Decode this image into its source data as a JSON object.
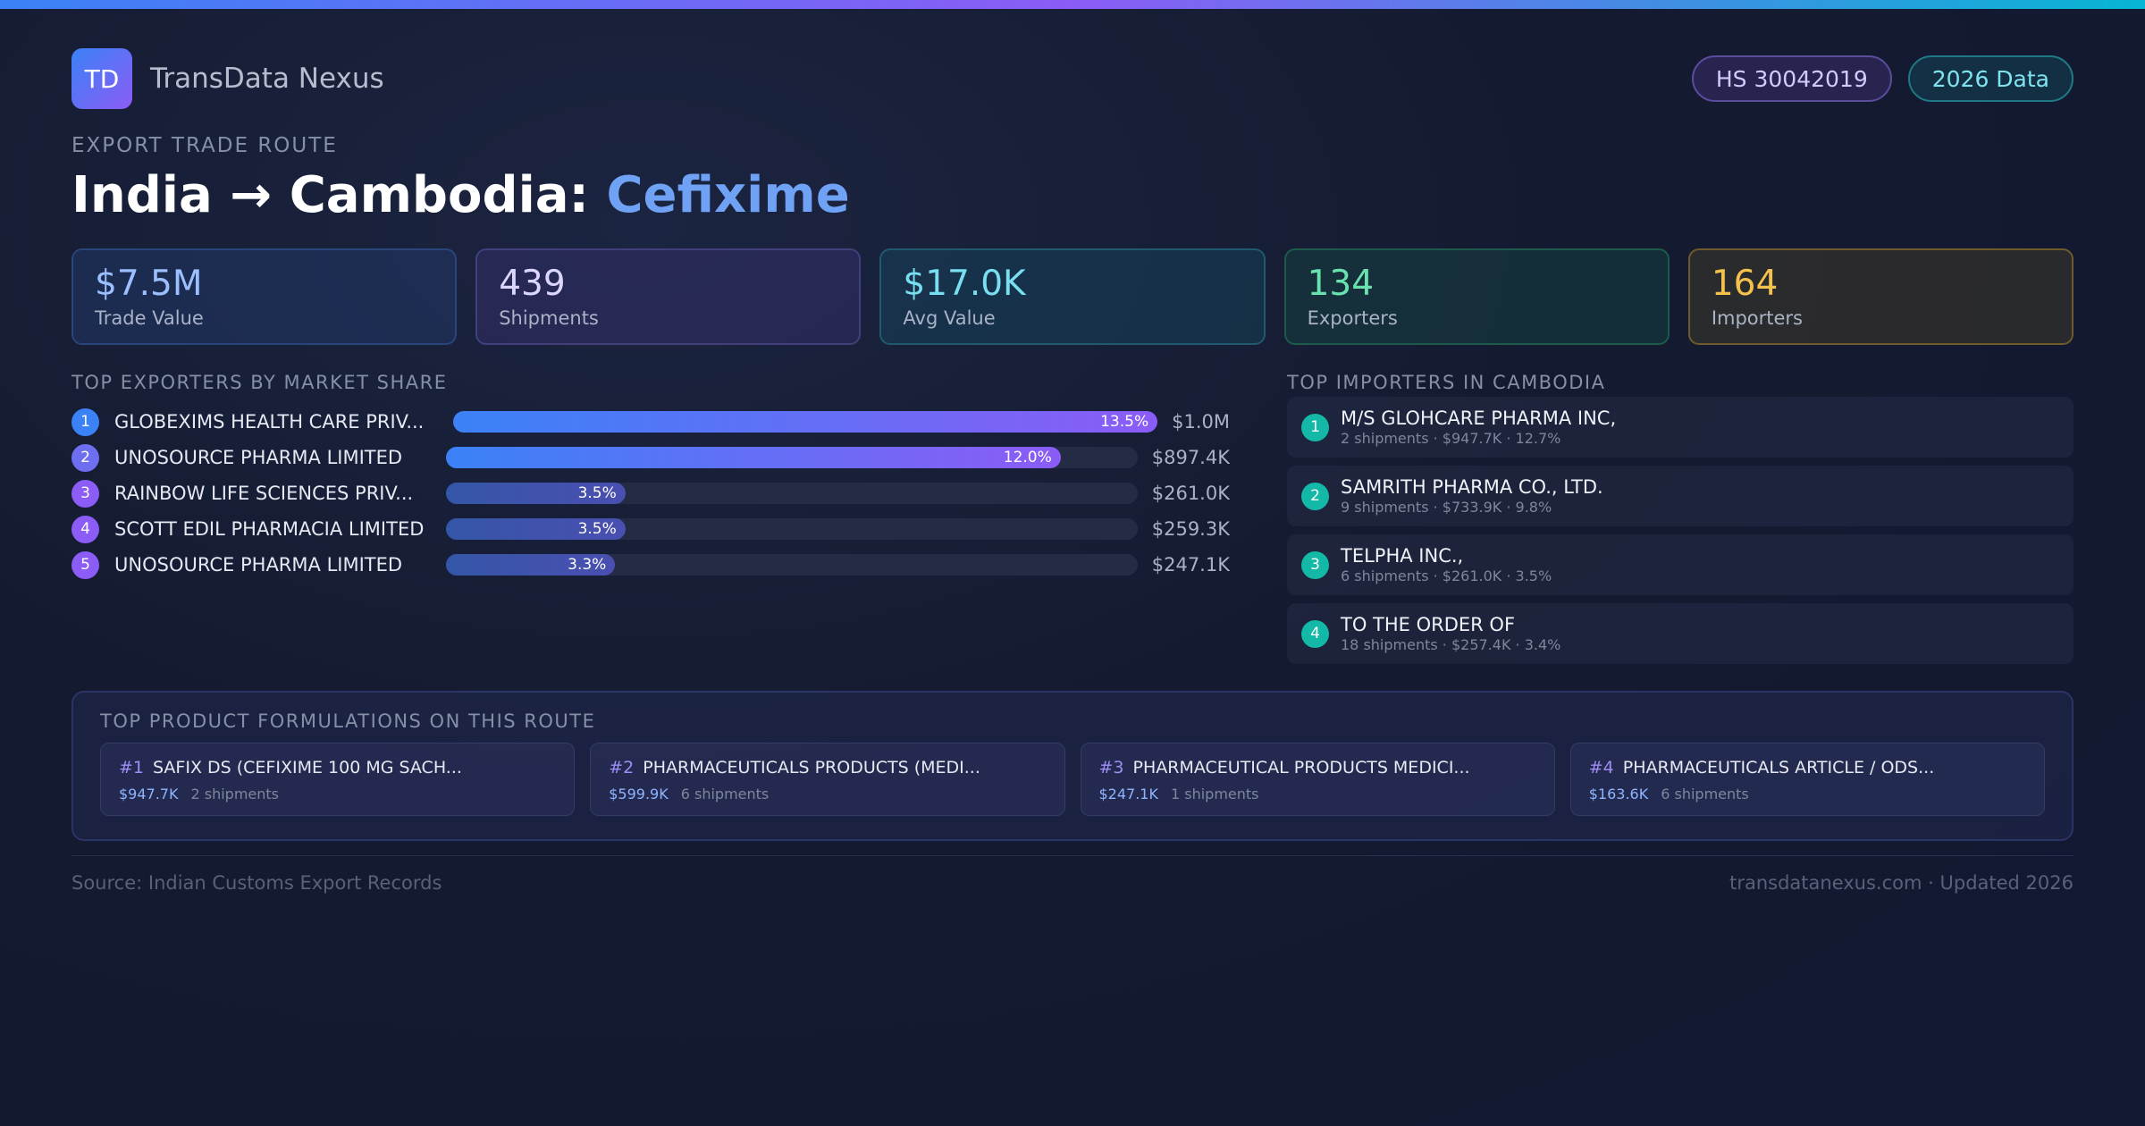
{
  "colors": {
    "accent_gradient": [
      "#3b82f6",
      "#8b5cf6",
      "#06b6d4"
    ],
    "importer_badge": "#14b8a6"
  },
  "header": {
    "logo_text": "TD",
    "brand": "TransData Nexus",
    "badges": {
      "hs": "HS 30042019",
      "year": "2026 Data"
    }
  },
  "route": {
    "eyebrow": "EXPORT TRADE ROUTE",
    "title_prefix": "India → Cambodia: ",
    "product": "Cefixime"
  },
  "stats": [
    {
      "value": "$7.5M",
      "label": "Trade Value"
    },
    {
      "value": "439",
      "label": "Shipments"
    },
    {
      "value": "$17.0K",
      "label": "Avg Value"
    },
    {
      "value": "134",
      "label": "Exporters"
    },
    {
      "value": "164",
      "label": "Importers"
    }
  ],
  "exporters": {
    "heading": "TOP EXPORTERS BY MARKET SHARE",
    "items": [
      {
        "rank": "1",
        "name": "GLOBEXIMS HEALTH CARE PRIV...",
        "share_label": "13.5%",
        "share": 13.5,
        "value": "$1.0M",
        "rank_color": "#3b82f6"
      },
      {
        "rank": "2",
        "name": "UNOSOURCE PHARMA LIMITED",
        "share_label": "12.0%",
        "share": 12.0,
        "value": "$897.4K",
        "rank_color": "#6d6ff0"
      },
      {
        "rank": "3",
        "name": "RAINBOW LIFE SCIENCES PRIV...",
        "share_label": "3.5%",
        "share": 3.5,
        "value": "$261.0K",
        "rank_color": "#8b5cf6"
      },
      {
        "rank": "4",
        "name": "SCOTT EDIL PHARMACIA LIMITED",
        "share_label": "3.5%",
        "share": 3.5,
        "value": "$259.3K",
        "rank_color": "#8b5cf6"
      },
      {
        "rank": "5",
        "name": "UNOSOURCE PHARMA LIMITED",
        "share_label": "3.3%",
        "share": 3.3,
        "value": "$247.1K",
        "rank_color": "#8b5cf6"
      }
    ]
  },
  "importers": {
    "heading": "TOP IMPORTERS IN CAMBODIA",
    "items": [
      {
        "rank": "1",
        "name": "M/S GLOHCARE PHARMA INC,",
        "meta": "2 shipments · $947.7K · 12.7%"
      },
      {
        "rank": "2",
        "name": "SAMRITH PHARMA CO., LTD.",
        "meta": "9 shipments · $733.9K · 9.8%"
      },
      {
        "rank": "3",
        "name": "TELPHA INC.,",
        "meta": "6 shipments · $261.0K · 3.5%"
      },
      {
        "rank": "4",
        "name": "TO THE ORDER OF",
        "meta": "18 shipments · $257.4K · 3.4%"
      }
    ]
  },
  "formulations": {
    "heading": "TOP PRODUCT FORMULATIONS ON THIS ROUTE",
    "items": [
      {
        "num": "#1",
        "title": "SAFIX DS (CEFIXIME 100 MG SACH...",
        "value": "$947.7K",
        "shipments": "2 shipments"
      },
      {
        "num": "#2",
        "title": "PHARMACEUTICALS PRODUCTS (MEDI...",
        "value": "$599.9K",
        "shipments": "6 shipments"
      },
      {
        "num": "#3",
        "title": "PHARMACEUTICAL PRODUCTS MEDICI...",
        "value": "$247.1K",
        "shipments": "1 shipments"
      },
      {
        "num": "#4",
        "title": "PHARMACEUTICALS ARTICLE / ODS...",
        "value": "$163.6K",
        "shipments": "6 shipments"
      }
    ]
  },
  "footer": {
    "source": "Source: Indian Customs Export Records",
    "site": "transdatanexus.com · Updated 2026"
  }
}
